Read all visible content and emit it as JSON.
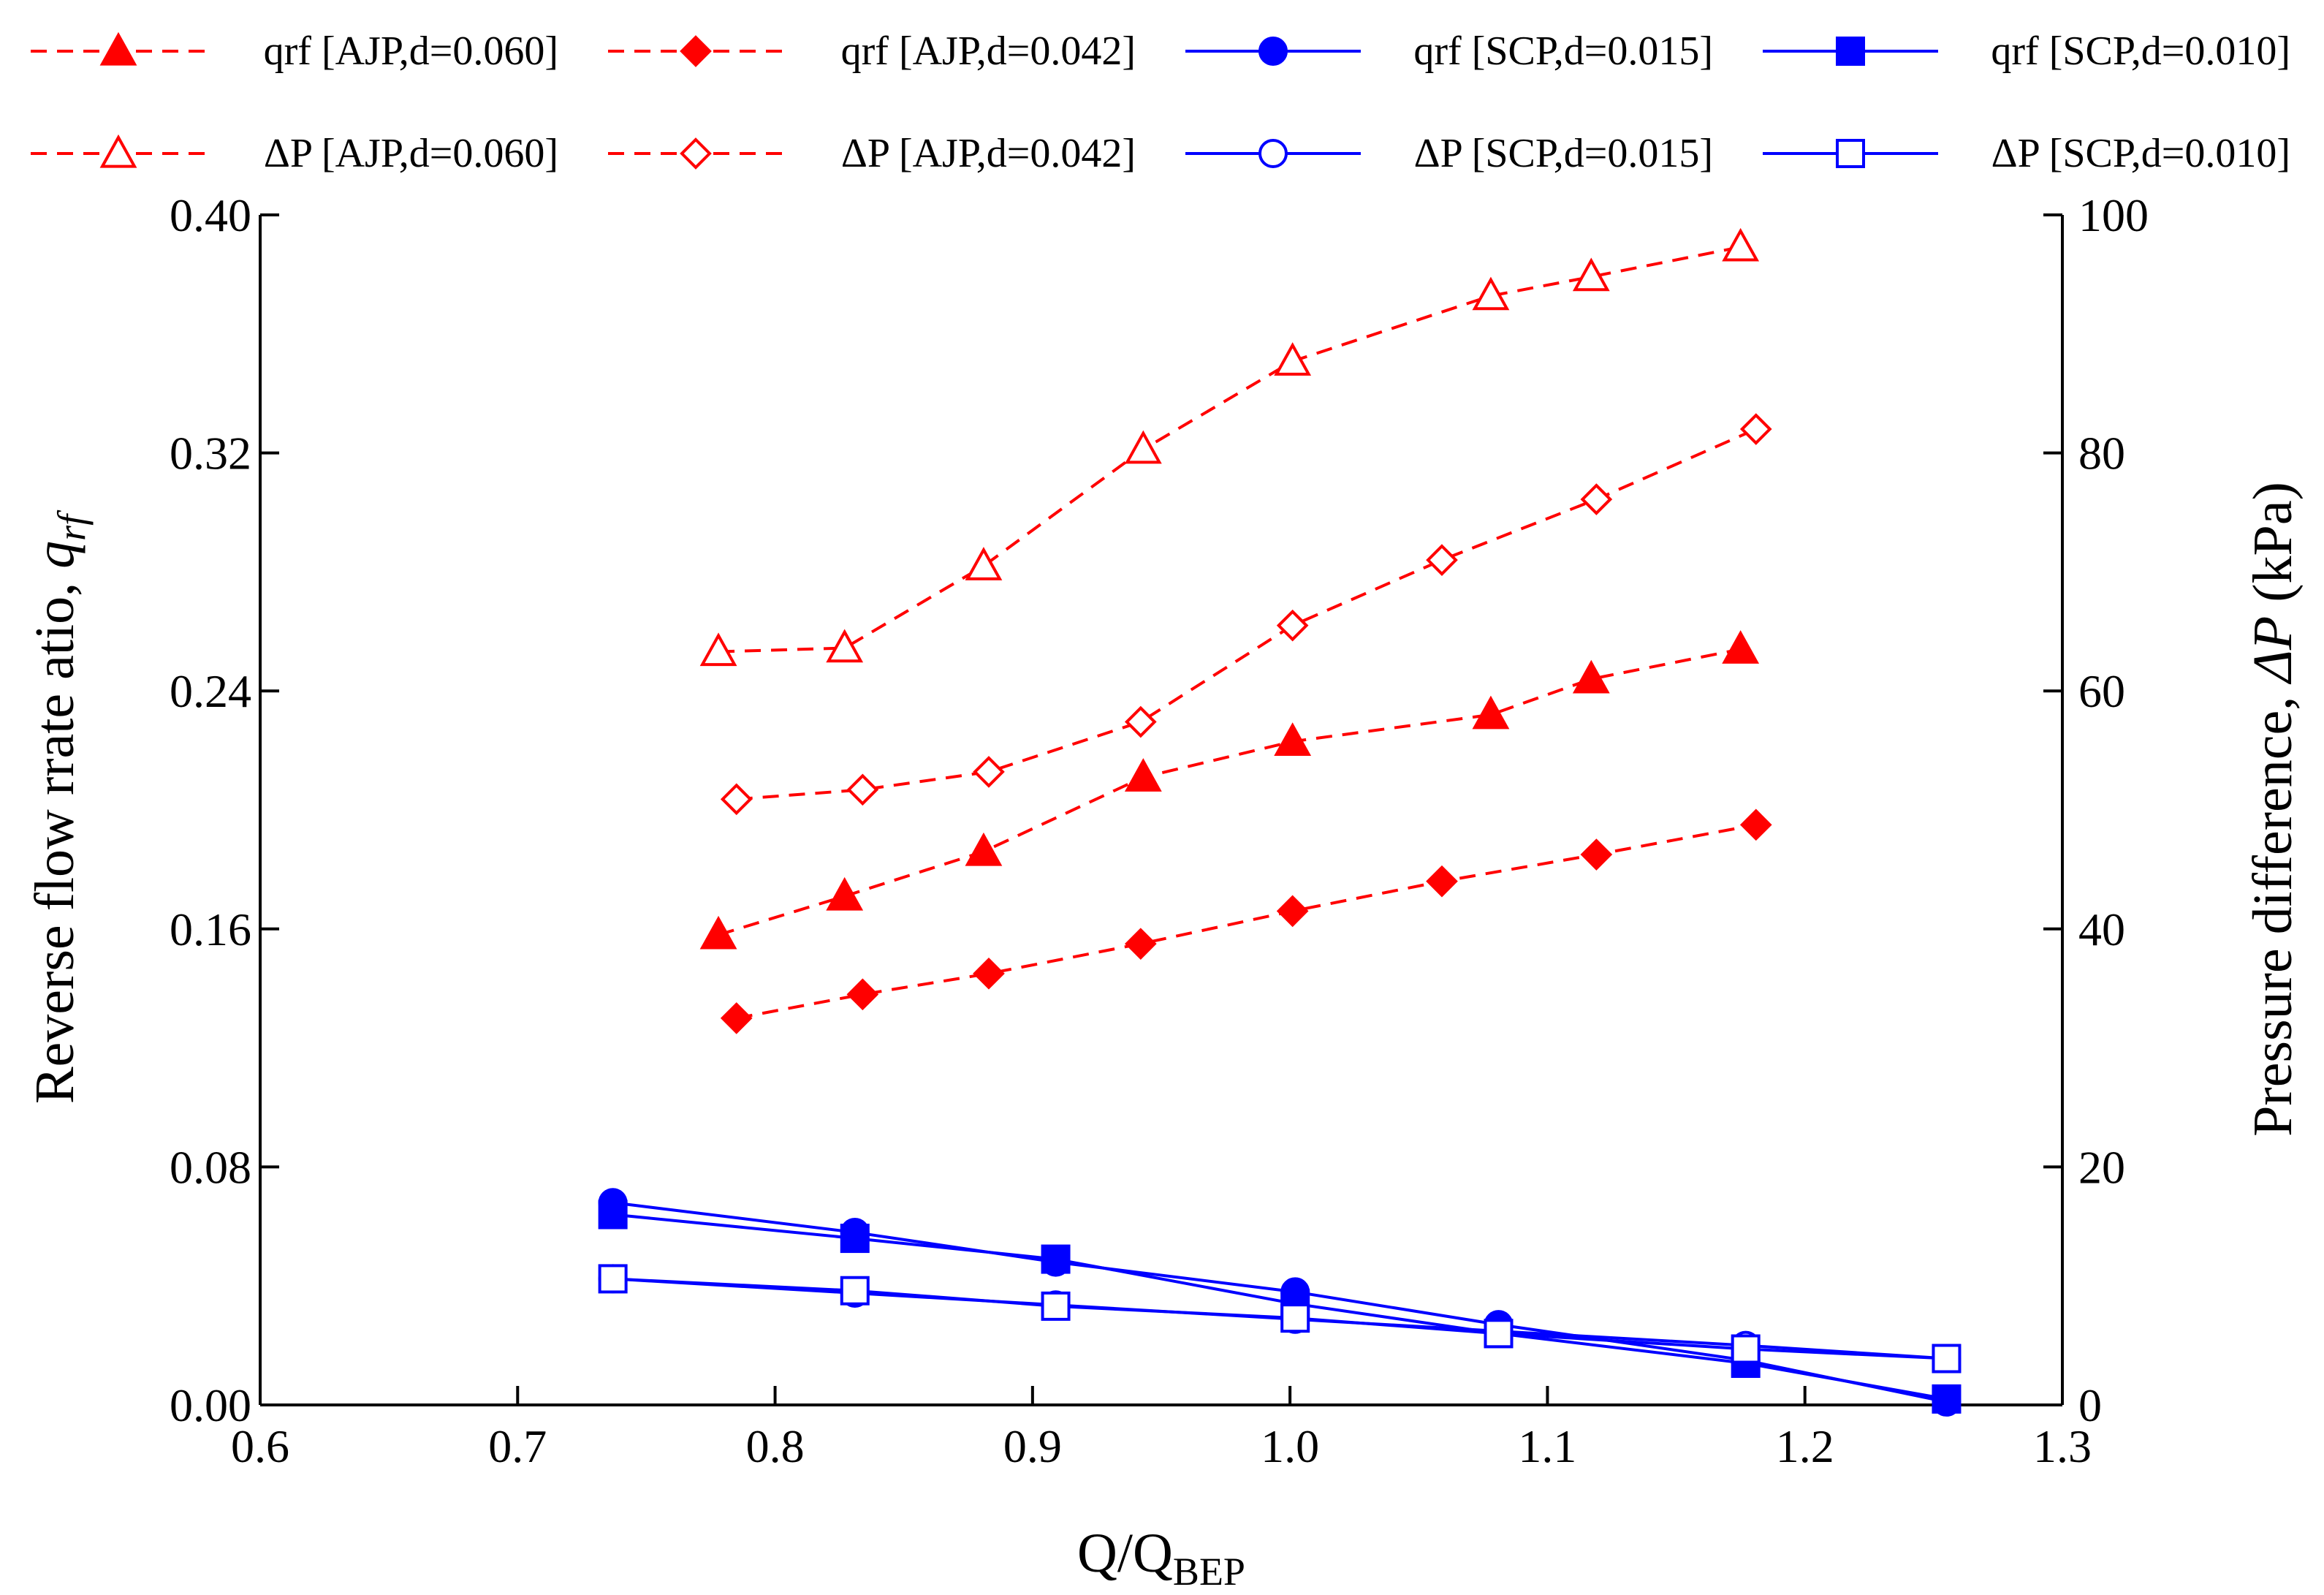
{
  "chart_data": {
    "type": "line",
    "title": "",
    "xlabel": "Q/Q",
    "xlabel_subscript": "BEP",
    "ylabel_left": "Reverse flow rrate atio, ",
    "ylabel_left_var": "q",
    "ylabel_left_var_sub": "rf",
    "ylabel_right": "Pressure difference, ",
    "ylabel_right_var": "ΔP",
    "ylabel_right_unit": " (kPa)",
    "xlim": [
      0.6,
      1.3
    ],
    "ylim_left": [
      0.0,
      0.4
    ],
    "ylim_right": [
      0,
      100
    ],
    "x_ticks": [
      "0.6",
      "0.7",
      "0.8",
      "0.9",
      "1.0",
      "1.1",
      "1.2",
      "1.3"
    ],
    "y_left_ticks": [
      "0.00",
      "0.08",
      "0.16",
      "0.24",
      "0.32",
      "0.40"
    ],
    "y_right_ticks": [
      "0",
      "20",
      "40",
      "60",
      "80",
      "100"
    ],
    "grid": false,
    "legend_position": "top",
    "series": [
      {
        "name": "qrf [AJP,d=0.060]",
        "axis": "left",
        "color": "#ff0000",
        "dash": "dashed",
        "marker": "triangle",
        "filled": true,
        "x": [
          0.778,
          0.827,
          0.881,
          0.943,
          1.001,
          1.078,
          1.117,
          1.175
        ],
        "y": [
          0.158,
          0.171,
          0.186,
          0.211,
          0.223,
          0.232,
          0.244,
          0.254
        ]
      },
      {
        "name": "qrf [AJP,d=0.042]",
        "axis": "left",
        "color": "#ff0000",
        "dash": "dashed",
        "marker": "diamond",
        "filled": true,
        "x": [
          0.785,
          0.834,
          0.883,
          0.942,
          1.001,
          1.059,
          1.119,
          1.181
        ],
        "y": [
          0.13,
          0.138,
          0.145,
          0.155,
          0.166,
          0.176,
          0.185,
          0.195
        ]
      },
      {
        "name": "qrf [SCP,d=0.015]",
        "axis": "left",
        "color": "#0000ff",
        "dash": "solid",
        "marker": "circle",
        "filled": true,
        "x": [
          0.737,
          0.831,
          0.909,
          1.002,
          1.081,
          1.177,
          1.255
        ],
        "y": [
          0.068,
          0.058,
          0.048,
          0.038,
          0.027,
          0.015,
          0.001
        ]
      },
      {
        "name": "qrf [SCP,d=0.010]",
        "axis": "left",
        "color": "#0000ff",
        "dash": "solid",
        "marker": "square",
        "filled": true,
        "x": [
          0.737,
          0.831,
          0.909,
          1.002,
          1.081,
          1.177,
          1.255
        ],
        "y": [
          0.064,
          0.056,
          0.049,
          0.034,
          0.024,
          0.014,
          0.002
        ]
      },
      {
        "name": "ΔP [AJP,d=0.060]",
        "axis": "right",
        "color": "#ff0000",
        "dash": "dashed",
        "marker": "triangle",
        "filled": false,
        "x": [
          0.778,
          0.827,
          0.881,
          0.943,
          1.001,
          1.078,
          1.117,
          1.175
        ],
        "y": [
          63.3,
          63.6,
          70.5,
          80.3,
          87.7,
          93.2,
          94.8,
          97.3
        ]
      },
      {
        "name": "ΔP [AJP,d=0.042]",
        "axis": "right",
        "color": "#ff0000",
        "dash": "dashed",
        "marker": "diamond",
        "filled": false,
        "x": [
          0.785,
          0.834,
          0.883,
          0.942,
          1.001,
          1.059,
          1.119,
          1.181
        ],
        "y": [
          50.9,
          51.7,
          53.2,
          57.4,
          65.5,
          71.0,
          76.1,
          82.0
        ]
      },
      {
        "name": "ΔP [SCP,d=0.015]",
        "axis": "right",
        "color": "#0000ff",
        "dash": "solid",
        "marker": "circle",
        "filled": false,
        "x": [
          0.737,
          0.831,
          0.909,
          1.002,
          1.081,
          1.177,
          1.255
        ],
        "y": [
          10.6,
          9.4,
          8.4,
          7.2,
          6.2,
          5.0,
          3.9
        ]
      },
      {
        "name": "ΔP [SCP,d=0.010]",
        "axis": "right",
        "color": "#0000ff",
        "dash": "solid",
        "marker": "square",
        "filled": false,
        "x": [
          0.737,
          0.831,
          0.909,
          1.002,
          1.081,
          1.177,
          1.255
        ],
        "y": [
          10.6,
          9.6,
          8.3,
          7.3,
          6.0,
          4.7,
          3.9
        ]
      }
    ]
  }
}
